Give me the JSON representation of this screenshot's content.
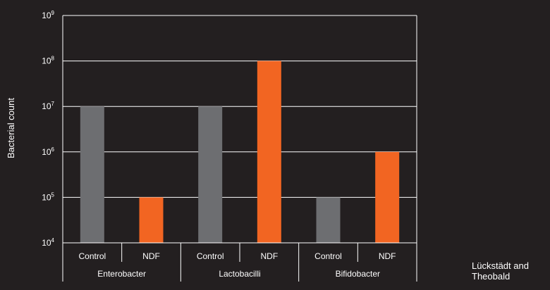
{
  "colors": {
    "background": "#231f20",
    "axis": "#ffffff",
    "control": "#6d6e71",
    "ndf": "#f26522"
  },
  "chart_data": {
    "type": "bar",
    "title": "",
    "ylabel": "Bacterial count",
    "y_scale": "log10",
    "ylim": [
      10000,
      1000000000
    ],
    "yticks": [
      {
        "base": "10",
        "exp": "4"
      },
      {
        "base": "10",
        "exp": "5"
      },
      {
        "base": "10",
        "exp": "6"
      },
      {
        "base": "10",
        "exp": "7"
      },
      {
        "base": "10",
        "exp": "8"
      },
      {
        "base": "10",
        "exp": "9"
      }
    ],
    "grid": true,
    "groups": [
      {
        "label": "Enterobacter",
        "bars": [
          {
            "label": "Control",
            "value": 10000000,
            "series": "control"
          },
          {
            "label": "NDF",
            "value": 100000,
            "series": "ndf"
          }
        ]
      },
      {
        "label": "Lactobacilli",
        "bars": [
          {
            "label": "Control",
            "value": 10000000,
            "series": "control"
          },
          {
            "label": "NDF",
            "value": 100000000,
            "series": "ndf"
          }
        ]
      },
      {
        "label": "Bifidobacter",
        "bars": [
          {
            "label": "Control",
            "value": 100000,
            "series": "control"
          },
          {
            "label": "NDF",
            "value": 1000000,
            "series": "ndf"
          }
        ]
      }
    ]
  },
  "credit": {
    "line1": "Lückstädt and",
    "line2": "Theobald"
  }
}
